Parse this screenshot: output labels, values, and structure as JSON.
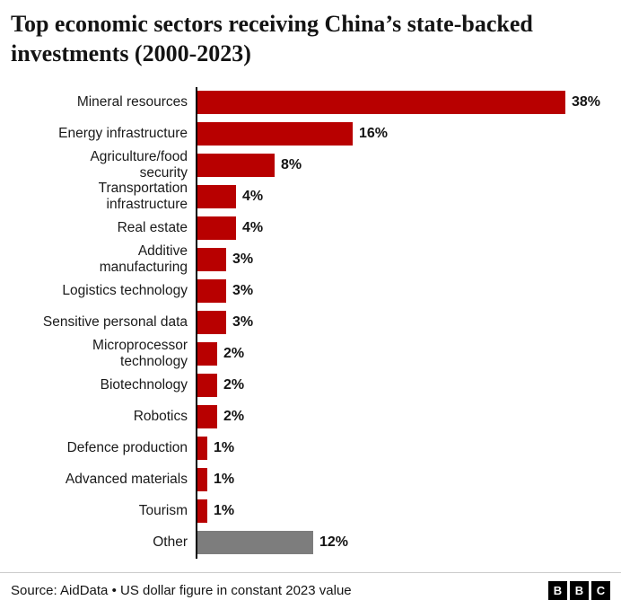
{
  "header": {
    "title": "Top economic sectors receiving China’s state-backed investments (2000-2023)"
  },
  "chart_data": {
    "type": "bar",
    "orientation": "horizontal",
    "title": "Top economic sectors receiving China’s state-backed investments (2000-2023)",
    "unit": "%",
    "xlim": [
      0,
      40
    ],
    "grid": false,
    "legend": "none",
    "bar_color": "#b80000",
    "other_bar_color": "#7d7d7d",
    "categories": [
      "Mineral resources",
      "Energy infrastructure",
      "Agriculture/food security",
      "Transportation infrastructure",
      "Real estate",
      "Additive manufacturing",
      "Logistics technology",
      "Sensitive personal data",
      "Microprocessor technology",
      "Biotechnology",
      "Robotics",
      "Defence production",
      "Advanced materials",
      "Tourism",
      "Other"
    ],
    "values": [
      38,
      16,
      8,
      4,
      4,
      3,
      3,
      3,
      2,
      2,
      2,
      1,
      1,
      1,
      12
    ],
    "rows": [
      {
        "display_label": "Mineral resources",
        "value": 38,
        "value_label": "38%",
        "other": false
      },
      {
        "display_label": "Energy infrastructure",
        "value": 16,
        "value_label": "16%",
        "other": false
      },
      {
        "display_label": "Agriculture/food\nsecurity",
        "value": 8,
        "value_label": "8%",
        "other": false
      },
      {
        "display_label": "Transportation\ninfrastructure",
        "value": 4,
        "value_label": "4%",
        "other": false
      },
      {
        "display_label": "Real estate",
        "value": 4,
        "value_label": "4%",
        "other": false
      },
      {
        "display_label": "Additive\nmanufacturing",
        "value": 3,
        "value_label": "3%",
        "other": false
      },
      {
        "display_label": "Logistics technology",
        "value": 3,
        "value_label": "3%",
        "other": false
      },
      {
        "display_label": "Sensitive personal data",
        "value": 3,
        "value_label": "3%",
        "other": false
      },
      {
        "display_label": "Microprocessor\ntechnology",
        "value": 2,
        "value_label": "2%",
        "other": false
      },
      {
        "display_label": "Biotechnology",
        "value": 2,
        "value_label": "2%",
        "other": false
      },
      {
        "display_label": "Robotics",
        "value": 2,
        "value_label": "2%",
        "other": false
      },
      {
        "display_label": "Defence production",
        "value": 1,
        "value_label": "1%",
        "other": false
      },
      {
        "display_label": "Advanced materials",
        "value": 1,
        "value_label": "1%",
        "other": false
      },
      {
        "display_label": "Tourism",
        "value": 1,
        "value_label": "1%",
        "other": false
      },
      {
        "display_label": "Other",
        "value": 12,
        "value_label": "12%",
        "other": true
      }
    ],
    "max_value": 38
  },
  "footer": {
    "source": "Source: AidData • US dollar figure in constant 2023 value",
    "logo_letters": [
      "B",
      "B",
      "C"
    ]
  }
}
